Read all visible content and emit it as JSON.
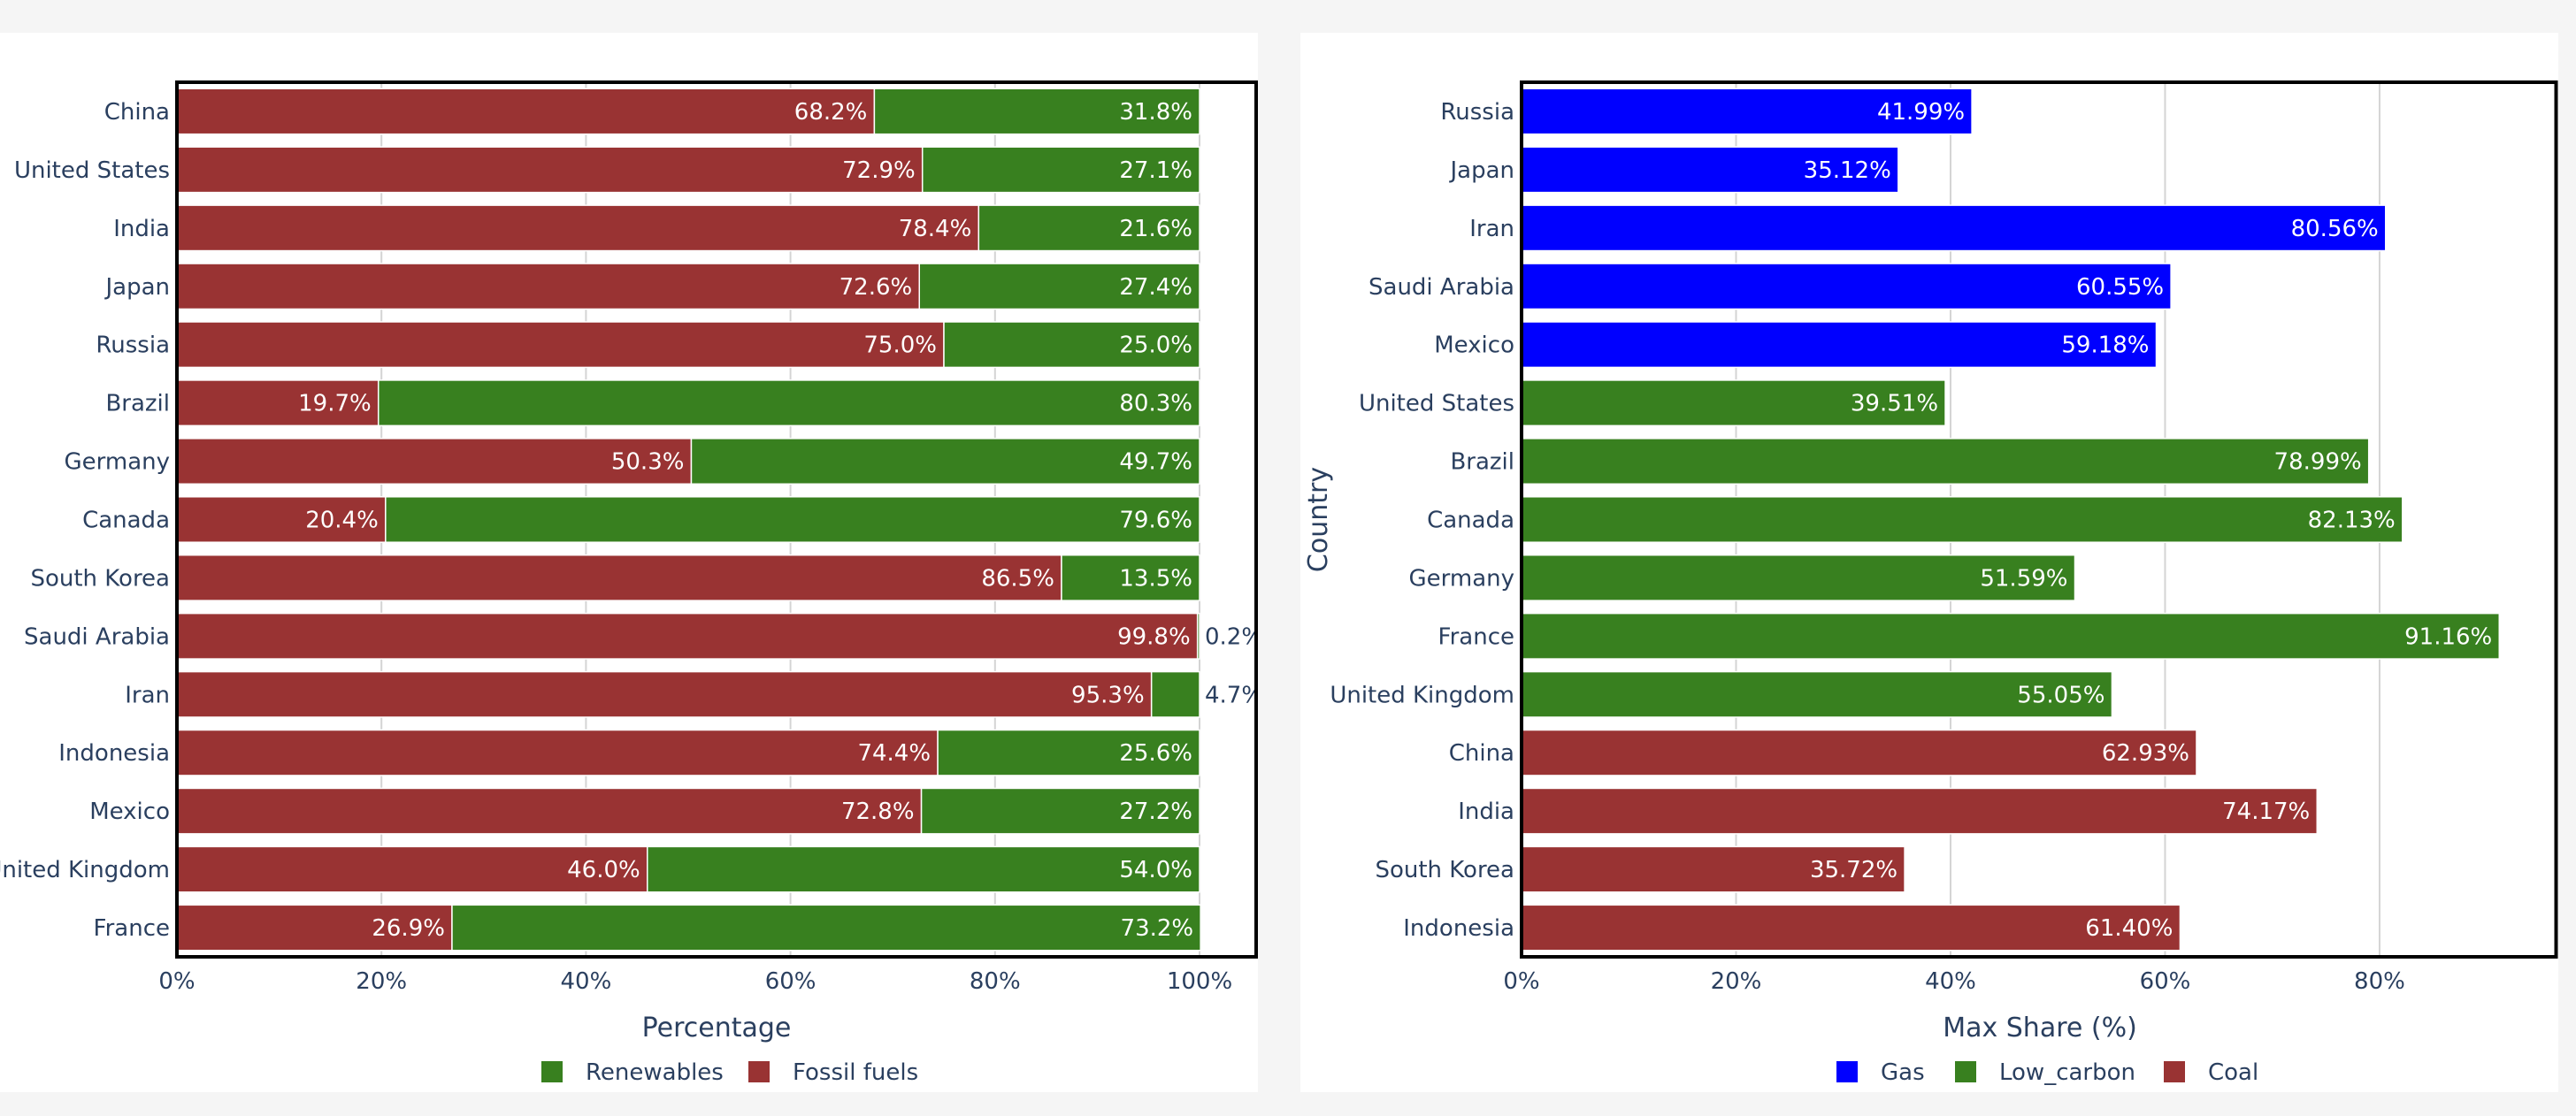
{
  "chart_data": [
    {
      "type": "bar",
      "orientation": "horizontal",
      "stacked": "percent",
      "categories": [
        "China",
        "United States",
        "India",
        "Japan",
        "Russia",
        "Brazil",
        "Germany",
        "Canada",
        "South Korea",
        "Saudi Arabia",
        "Iran",
        "Indonesia",
        "Mexico",
        "United Kingdom",
        "France"
      ],
      "series": [
        {
          "name": "Fossil fuels",
          "color": "#993333",
          "values": [
            68.2,
            72.9,
            78.4,
            72.6,
            75.0,
            19.7,
            50.3,
            20.4,
            86.5,
            99.8,
            95.3,
            74.4,
            72.8,
            46.0,
            26.9
          ],
          "labels": [
            "68.2%",
            "72.9%",
            "78.4%",
            "72.6%",
            "75.0%",
            "19.7%",
            "50.3%",
            "20.4%",
            "86.5%",
            "99.8%",
            "95.3%",
            "74.4%",
            "72.8%",
            "46.0%",
            "26.9%"
          ]
        },
        {
          "name": "Renewables",
          "color": "#38801f",
          "values": [
            31.8,
            27.1,
            21.6,
            27.4,
            25.0,
            80.3,
            49.7,
            79.6,
            13.5,
            0.2,
            4.7,
            25.6,
            27.2,
            54.0,
            73.2
          ],
          "labels": [
            "31.8%",
            "27.1%",
            "21.6%",
            "27.4%",
            "25.0%",
            "80.3%",
            "49.7%",
            "79.6%",
            "13.5%",
            "0.2%",
            "4.7%",
            "25.6%",
            "27.2%",
            "54.0%",
            "73.2%"
          ]
        }
      ],
      "xlabel": "Percentage",
      "ylabel": "",
      "xlim": [
        0,
        100
      ],
      "xticks": [
        "0%",
        "20%",
        "40%",
        "60%",
        "80%",
        "100%"
      ],
      "xtick_values": [
        0,
        20,
        40,
        60,
        80,
        100
      ],
      "grid": true,
      "legend": {
        "placement": "bottom-center",
        "items": [
          {
            "name": "Renewables",
            "color": "#38801f"
          },
          {
            "name": "Fossil fuels",
            "color": "#993333"
          }
        ]
      }
    },
    {
      "type": "bar",
      "orientation": "horizontal",
      "categories": [
        "Russia",
        "Japan",
        "Iran",
        "Saudi Arabia",
        "Mexico",
        "United States",
        "Brazil",
        "Canada",
        "Germany",
        "France",
        "United Kingdom",
        "China",
        "India",
        "South Korea",
        "Indonesia"
      ],
      "values": [
        41.99,
        35.12,
        80.56,
        60.55,
        59.18,
        39.51,
        78.99,
        82.13,
        51.59,
        91.16,
        55.05,
        62.93,
        74.17,
        35.72,
        61.4
      ],
      "labels": [
        "41.99%",
        "35.12%",
        "80.56%",
        "60.55%",
        "59.18%",
        "39.51%",
        "78.99%",
        "82.13%",
        "51.59%",
        "91.16%",
        "55.05%",
        "62.93%",
        "74.17%",
        "35.72%",
        "61.40%"
      ],
      "groups": [
        "Gas",
        "Gas",
        "Gas",
        "Gas",
        "Gas",
        "Low_carbon",
        "Low_carbon",
        "Low_carbon",
        "Low_carbon",
        "Low_carbon",
        "Low_carbon",
        "Coal",
        "Coal",
        "Coal",
        "Coal"
      ],
      "group_colors": {
        "Gas": "#0000ff",
        "Low_carbon": "#38801f",
        "Coal": "#993333"
      },
      "xlabel": "Max Share (%)",
      "ylabel": "Country",
      "xlim": [
        0,
        96.5
      ],
      "xticks": [
        "0%",
        "20%",
        "40%",
        "60%",
        "80%"
      ],
      "xtick_values": [
        0,
        20,
        40,
        60,
        80
      ],
      "grid": true,
      "legend": {
        "placement": "bottom-center",
        "items": [
          {
            "name": "Gas",
            "color": "#0000ff"
          },
          {
            "name": "Low_carbon",
            "color": "#38801f"
          },
          {
            "name": "Coal",
            "color": "#993333"
          }
        ]
      }
    }
  ]
}
